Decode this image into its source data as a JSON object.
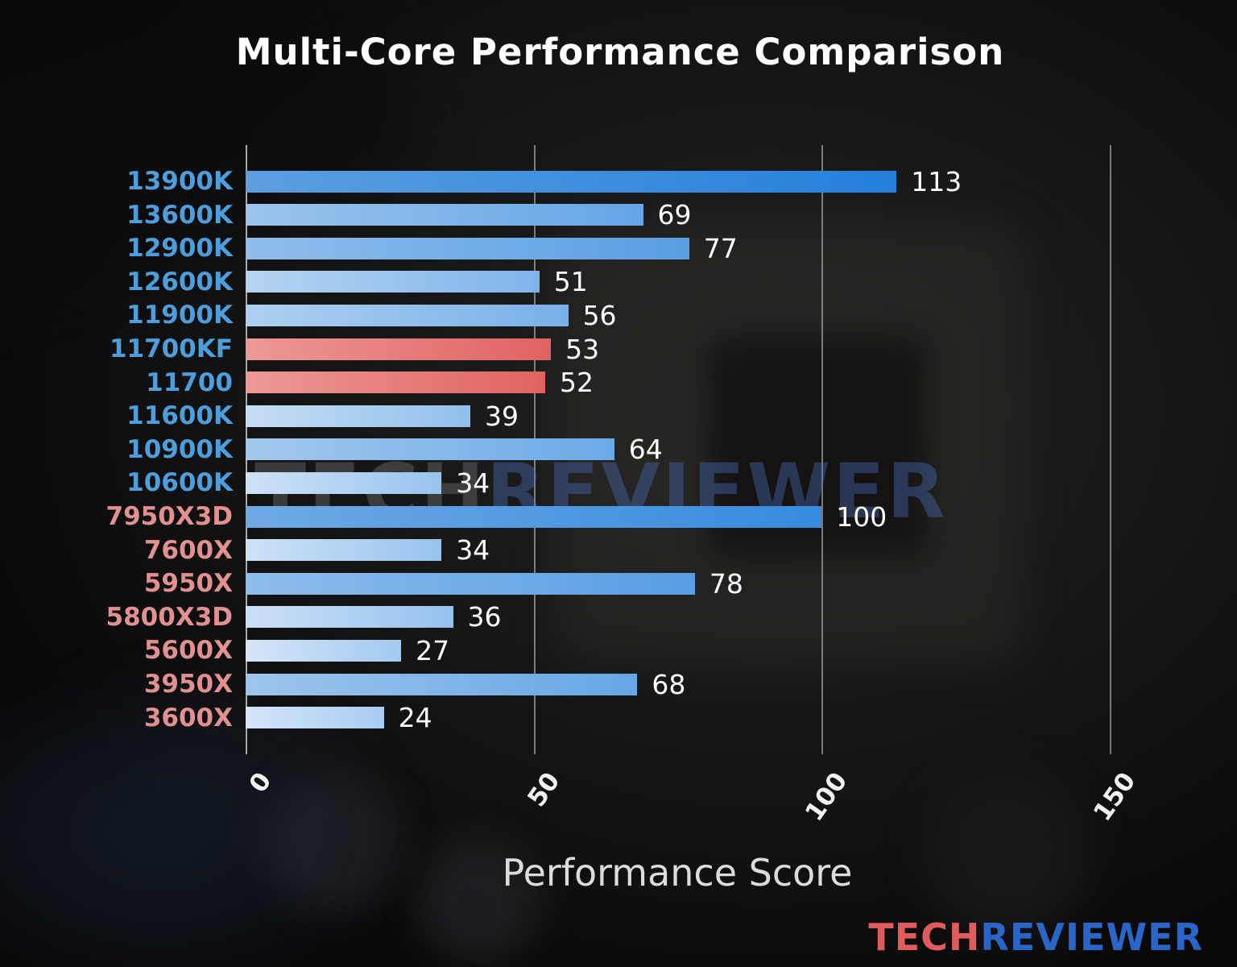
{
  "title": "Multi-Core Performance Comparison",
  "watermark": {
    "part1": "TECH",
    "part2": "REVIEWER"
  },
  "footer_logo": {
    "part1": "TECH",
    "part2": "REVIEWER"
  },
  "colors": {
    "intel_label": "#4d9edc",
    "amd_label": "#e29090",
    "bar_blue_strong": "#2f8be2",
    "bar_red": "#e66060",
    "value_text": "#ffffff",
    "gridline": "#cdcdcd"
  },
  "chart_data": {
    "type": "bar",
    "orientation": "horizontal",
    "title": "Multi-Core Performance Comparison",
    "xlabel": "Performance Score",
    "xlim": [
      0,
      150
    ],
    "xticks": [
      0,
      50,
      100,
      150
    ],
    "grid": true,
    "categories": [
      "13900K",
      "13600K",
      "12900K",
      "12600K",
      "11900K",
      "11700KF",
      "11700",
      "11600K",
      "10900K",
      "10600K",
      "7950X3D",
      "7600X",
      "5950X",
      "5800X3D",
      "5600X",
      "3950X",
      "3600X"
    ],
    "values": [
      113,
      69,
      77,
      51,
      56,
      53,
      52,
      39,
      64,
      34,
      100,
      34,
      78,
      36,
      27,
      68,
      24
    ],
    "rows": [
      {
        "label": "13900K",
        "value": 113,
        "label_color": "blue",
        "bar_color": "blue"
      },
      {
        "label": "13600K",
        "value": 69,
        "label_color": "blue",
        "bar_color": "blue"
      },
      {
        "label": "12900K",
        "value": 77,
        "label_color": "blue",
        "bar_color": "blue"
      },
      {
        "label": "12600K",
        "value": 51,
        "label_color": "blue",
        "bar_color": "blue"
      },
      {
        "label": "11900K",
        "value": 56,
        "label_color": "blue",
        "bar_color": "blue"
      },
      {
        "label": "11700KF",
        "value": 53,
        "label_color": "blue",
        "bar_color": "red"
      },
      {
        "label": "11700",
        "value": 52,
        "label_color": "blue",
        "bar_color": "red"
      },
      {
        "label": "11600K",
        "value": 39,
        "label_color": "blue",
        "bar_color": "blue"
      },
      {
        "label": "10900K",
        "value": 64,
        "label_color": "blue",
        "bar_color": "blue"
      },
      {
        "label": "10600K",
        "value": 34,
        "label_color": "blue",
        "bar_color": "blue"
      },
      {
        "label": "7950X3D",
        "value": 100,
        "label_color": "red",
        "bar_color": "blue"
      },
      {
        "label": "7600X",
        "value": 34,
        "label_color": "red",
        "bar_color": "blue"
      },
      {
        "label": "5950X",
        "value": 78,
        "label_color": "red",
        "bar_color": "blue"
      },
      {
        "label": "5800X3D",
        "value": 36,
        "label_color": "red",
        "bar_color": "blue"
      },
      {
        "label": "5600X",
        "value": 27,
        "label_color": "red",
        "bar_color": "blue"
      },
      {
        "label": "3950X",
        "value": 68,
        "label_color": "red",
        "bar_color": "blue"
      },
      {
        "label": "3600X",
        "value": 24,
        "label_color": "red",
        "bar_color": "blue"
      }
    ]
  }
}
